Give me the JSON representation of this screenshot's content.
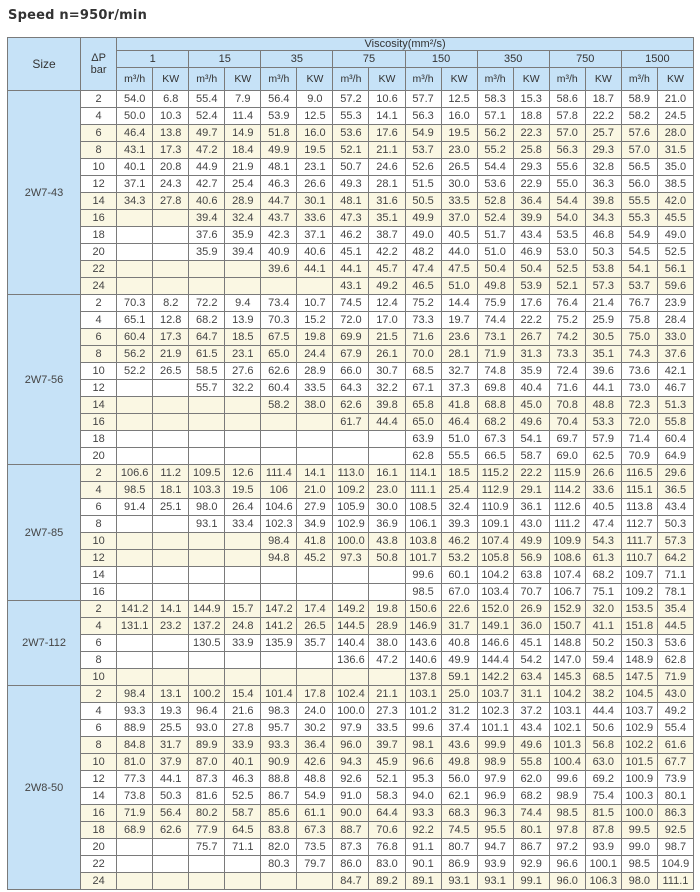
{
  "title": "Speed  n=950r/min",
  "header": {
    "size": "Size",
    "dp": "ΔP",
    "dp_unit": "bar",
    "viscosity": "Viscosity(mm²/s)",
    "viscosities": [
      "1",
      "15",
      "35",
      "75",
      "150",
      "350",
      "750",
      "1500"
    ],
    "flow_unit": "m³/h",
    "power_unit": "KW"
  },
  "colors": {
    "header_bg": "#c6e2f7",
    "alt_row_bg": "#faf7e3",
    "border": "#7a7a7a"
  },
  "groups": [
    {
      "size": "2W7-43",
      "rows": [
        {
          "dp": "2",
          "v": [
            "54.0",
            "6.8",
            "55.4",
            "7.9",
            "56.4",
            "9.0",
            "57.2",
            "10.6",
            "57.7",
            "12.5",
            "58.3",
            "15.3",
            "58.6",
            "18.7",
            "58.9",
            "21.0"
          ]
        },
        {
          "dp": "4",
          "v": [
            "50.0",
            "10.3",
            "52.4",
            "11.4",
            "53.9",
            "12.5",
            "55.3",
            "14.1",
            "56.3",
            "16.0",
            "57.1",
            "18.8",
            "57.8",
            "22.2",
            "58.2",
            "24.5"
          ]
        },
        {
          "dp": "6",
          "v": [
            "46.4",
            "13.8",
            "49.7",
            "14.9",
            "51.8",
            "16.0",
            "53.6",
            "17.6",
            "54.9",
            "19.5",
            "56.2",
            "22.3",
            "57.0",
            "25.7",
            "57.6",
            "28.0"
          ]
        },
        {
          "dp": "8",
          "v": [
            "43.1",
            "17.3",
            "47.2",
            "18.4",
            "49.9",
            "19.5",
            "52.1",
            "21.1",
            "53.7",
            "23.0",
            "55.2",
            "25.8",
            "56.3",
            "29.3",
            "57.0",
            "31.5"
          ]
        },
        {
          "dp": "10",
          "v": [
            "40.1",
            "20.8",
            "44.9",
            "21.9",
            "48.1",
            "23.1",
            "50.7",
            "24.6",
            "52.6",
            "26.5",
            "54.4",
            "29.3",
            "55.6",
            "32.8",
            "56.5",
            "35.0"
          ]
        },
        {
          "dp": "12",
          "v": [
            "37.1",
            "24.3",
            "42.7",
            "25.4",
            "46.3",
            "26.6",
            "49.3",
            "28.1",
            "51.5",
            "30.0",
            "53.6",
            "22.9",
            "55.0",
            "36.3",
            "56.0",
            "38.5"
          ]
        },
        {
          "dp": "14",
          "v": [
            "34.3",
            "27.8",
            "40.6",
            "28.9",
            "44.7",
            "30.1",
            "48.1",
            "31.6",
            "50.5",
            "33.5",
            "52.8",
            "36.4",
            "54.4",
            "39.8",
            "55.5",
            "42.0"
          ]
        },
        {
          "dp": "16",
          "v": [
            "",
            "",
            "39.4",
            "32.4",
            "43.7",
            "33.6",
            "47.3",
            "35.1",
            "49.9",
            "37.0",
            "52.4",
            "39.9",
            "54.0",
            "34.3",
            "55.3",
            "45.5"
          ]
        },
        {
          "dp": "18",
          "v": [
            "",
            "",
            "37.6",
            "35.9",
            "42.3",
            "37.1",
            "46.2",
            "38.7",
            "49.0",
            "40.5",
            "51.7",
            "43.4",
            "53.5",
            "46.8",
            "54.9",
            "49.0"
          ]
        },
        {
          "dp": "20",
          "v": [
            "",
            "",
            "35.9",
            "39.4",
            "40.9",
            "40.6",
            "45.1",
            "42.2",
            "48.2",
            "44.0",
            "51.0",
            "46.9",
            "53.0",
            "50.3",
            "54.5",
            "52.5"
          ]
        },
        {
          "dp": "22",
          "v": [
            "",
            "",
            "",
            "",
            "39.6",
            "44.1",
            "44.1",
            "45.7",
            "47.4",
            "47.5",
            "50.4",
            "50.4",
            "52.5",
            "53.8",
            "54.1",
            "56.1"
          ]
        },
        {
          "dp": "24",
          "v": [
            "",
            "",
            "",
            "",
            "",
            "",
            "43.1",
            "49.2",
            "46.5",
            "51.0",
            "49.8",
            "53.9",
            "52.1",
            "57.3",
            "53.7",
            "59.6"
          ]
        }
      ]
    },
    {
      "size": "2W7-56",
      "rows": [
        {
          "dp": "2",
          "v": [
            "70.3",
            "8.2",
            "72.2",
            "9.4",
            "73.4",
            "10.7",
            "74.5",
            "12.4",
            "75.2",
            "14.4",
            "75.9",
            "17.6",
            "76.4",
            "21.4",
            "76.7",
            "23.9"
          ]
        },
        {
          "dp": "4",
          "v": [
            "65.1",
            "12.8",
            "68.2",
            "13.9",
            "70.3",
            "15.2",
            "72.0",
            "17.0",
            "73.3",
            "19.7",
            "74.4",
            "22.2",
            "75.2",
            "25.9",
            "75.8",
            "28.4"
          ]
        },
        {
          "dp": "6",
          "v": [
            "60.4",
            "17.3",
            "64.7",
            "18.5",
            "67.5",
            "19.8",
            "69.9",
            "21.5",
            "71.6",
            "23.6",
            "73.1",
            "26.7",
            "74.2",
            "30.5",
            "75.0",
            "33.0"
          ]
        },
        {
          "dp": "8",
          "v": [
            "56.2",
            "21.9",
            "61.5",
            "23.1",
            "65.0",
            "24.4",
            "67.9",
            "26.1",
            "70.0",
            "28.1",
            "71.9",
            "31.3",
            "73.3",
            "35.1",
            "74.3",
            "37.6"
          ]
        },
        {
          "dp": "10",
          "v": [
            "52.2",
            "26.5",
            "58.5",
            "27.6",
            "62.6",
            "28.9",
            "66.0",
            "30.7",
            "68.5",
            "32.7",
            "74.8",
            "35.9",
            "72.4",
            "39.6",
            "73.6",
            "42.1"
          ]
        },
        {
          "dp": "12",
          "v": [
            "",
            "",
            "55.7",
            "32.2",
            "60.4",
            "33.5",
            "64.3",
            "32.2",
            "67.1",
            "37.3",
            "69.8",
            "40.4",
            "71.6",
            "44.1",
            "73.0",
            "46.7"
          ]
        },
        {
          "dp": "14",
          "v": [
            "",
            "",
            "",
            "",
            "58.2",
            "38.0",
            "62.6",
            "39.8",
            "65.8",
            "41.8",
            "68.8",
            "45.0",
            "70.8",
            "48.8",
            "72.3",
            "51.3"
          ]
        },
        {
          "dp": "16",
          "v": [
            "",
            "",
            "",
            "",
            "",
            "",
            "61.7",
            "44.4",
            "65.0",
            "46.4",
            "68.2",
            "49.6",
            "70.4",
            "53.3",
            "72.0",
            "55.8"
          ]
        },
        {
          "dp": "18",
          "v": [
            "",
            "",
            "",
            "",
            "",
            "",
            "",
            "",
            "63.9",
            "51.0",
            "67.3",
            "54.1",
            "69.7",
            "57.9",
            "71.4",
            "60.4"
          ]
        },
        {
          "dp": "20",
          "v": [
            "",
            "",
            "",
            "",
            "",
            "",
            "",
            "",
            "62.8",
            "55.5",
            "66.5",
            "58.7",
            "69.0",
            "62.5",
            "70.9",
            "64.9"
          ]
        }
      ]
    },
    {
      "size": "2W7-85",
      "rows": [
        {
          "dp": "2",
          "v": [
            "106.6",
            "11.2",
            "109.5",
            "12.6",
            "111.4",
            "14.1",
            "113.0",
            "16.1",
            "114.1",
            "18.5",
            "115.2",
            "22.2",
            "115.9",
            "26.6",
            "116.5",
            "29.6"
          ]
        },
        {
          "dp": "4",
          "v": [
            "98.5",
            "18.1",
            "103.3",
            "19.5",
            "106",
            "21.0",
            "109.2",
            "23.0",
            "111.1",
            "25.4",
            "112.9",
            "29.1",
            "114.2",
            "33.6",
            "115.1",
            "36.5"
          ]
        },
        {
          "dp": "6",
          "v": [
            "91.4",
            "25.1",
            "98.0",
            "26.4",
            "104.6",
            "27.9",
            "105.9",
            "30.0",
            "108.5",
            "32.4",
            "110.9",
            "36.1",
            "112.6",
            "40.5",
            "113.8",
            "43.4"
          ]
        },
        {
          "dp": "8",
          "v": [
            "",
            "",
            "93.1",
            "33.4",
            "102.3",
            "34.9",
            "102.9",
            "36.9",
            "106.1",
            "39.3",
            "109.1",
            "43.0",
            "111.2",
            "47.4",
            "112.7",
            "50.3"
          ]
        },
        {
          "dp": "10",
          "v": [
            "",
            "",
            "",
            "",
            "98.4",
            "41.8",
            "100.0",
            "43.8",
            "103.8",
            "46.2",
            "107.4",
            "49.9",
            "109.9",
            "54.3",
            "111.7",
            "57.3"
          ]
        },
        {
          "dp": "12",
          "v": [
            "",
            "",
            "",
            "",
            "94.8",
            "45.2",
            "97.3",
            "50.8",
            "101.7",
            "53.2",
            "105.8",
            "56.9",
            "108.6",
            "61.3",
            "110.7",
            "64.2"
          ]
        },
        {
          "dp": "14",
          "v": [
            "",
            "",
            "",
            "",
            "",
            "",
            "",
            "",
            "99.6",
            "60.1",
            "104.2",
            "63.8",
            "107.4",
            "68.2",
            "109.7",
            "71.1"
          ]
        },
        {
          "dp": "16",
          "v": [
            "",
            "",
            "",
            "",
            "",
            "",
            "",
            "",
            "98.5",
            "67.0",
            "103.4",
            "70.7",
            "106.7",
            "75.1",
            "109.2",
            "78.1"
          ]
        }
      ]
    },
    {
      "size": "2W7-112",
      "rows": [
        {
          "dp": "2",
          "v": [
            "141.2",
            "14.1",
            "144.9",
            "15.7",
            "147.2",
            "17.4",
            "149.2",
            "19.8",
            "150.6",
            "22.6",
            "152.0",
            "26.9",
            "152.9",
            "32.0",
            "153.5",
            "35.4"
          ]
        },
        {
          "dp": "4",
          "v": [
            "131.1",
            "23.2",
            "137.2",
            "24.8",
            "141.2",
            "26.5",
            "144.5",
            "28.9",
            "146.9",
            "31.7",
            "149.1",
            "36.0",
            "150.7",
            "41.1",
            "151.8",
            "44.5"
          ]
        },
        {
          "dp": "6",
          "v": [
            "",
            "",
            "130.5",
            "33.9",
            "135.9",
            "35.7",
            "140.4",
            "38.0",
            "143.6",
            "40.8",
            "146.6",
            "45.1",
            "148.8",
            "50.2",
            "150.3",
            "53.6"
          ]
        },
        {
          "dp": "8",
          "v": [
            "",
            "",
            "",
            "",
            "",
            "",
            "136.6",
            "47.2",
            "140.6",
            "49.9",
            "144.4",
            "54.2",
            "147.0",
            "59.4",
            "148.9",
            "62.8"
          ]
        },
        {
          "dp": "10",
          "v": [
            "",
            "",
            "",
            "",
            "",
            "",
            "",
            "",
            "137.8",
            "59.1",
            "142.2",
            "63.4",
            "145.3",
            "68.5",
            "147.5",
            "71.9"
          ]
        }
      ]
    },
    {
      "size": "2W8-50",
      "rows": [
        {
          "dp": "2",
          "v": [
            "98.4",
            "13.1",
            "100.2",
            "15.4",
            "101.4",
            "17.8",
            "102.4",
            "21.1",
            "103.1",
            "25.0",
            "103.7",
            "31.1",
            "104.2",
            "38.2",
            "104.5",
            "43.0"
          ]
        },
        {
          "dp": "4",
          "v": [
            "93.3",
            "19.3",
            "96.4",
            "21.6",
            "98.3",
            "24.0",
            "100.0",
            "27.3",
            "101.2",
            "31.2",
            "102.3",
            "37.2",
            "103.1",
            "44.4",
            "103.7",
            "49.2"
          ]
        },
        {
          "dp": "6",
          "v": [
            "88.9",
            "25.5",
            "93.0",
            "27.8",
            "95.7",
            "30.2",
            "97.9",
            "33.5",
            "99.6",
            "37.4",
            "101.1",
            "43.4",
            "102.1",
            "50.6",
            "102.9",
            "55.4"
          ]
        },
        {
          "dp": "8",
          "v": [
            "84.8",
            "31.7",
            "89.9",
            "33.9",
            "93.3",
            "36.4",
            "96.0",
            "39.7",
            "98.1",
            "43.6",
            "99.9",
            "49.6",
            "101.3",
            "56.8",
            "102.2",
            "61.6"
          ]
        },
        {
          "dp": "10",
          "v": [
            "81.0",
            "37.9",
            "87.0",
            "40.1",
            "90.9",
            "42.6",
            "94.3",
            "45.9",
            "96.6",
            "49.8",
            "98.9",
            "55.8",
            "100.4",
            "63.0",
            "101.5",
            "67.7"
          ]
        },
        {
          "dp": "12",
          "v": [
            "77.3",
            "44.1",
            "87.3",
            "46.3",
            "88.8",
            "48.8",
            "92.6",
            "52.1",
            "95.3",
            "56.0",
            "97.9",
            "62.0",
            "99.6",
            "69.2",
            "100.9",
            "73.9"
          ]
        },
        {
          "dp": "14",
          "v": [
            "73.8",
            "50.3",
            "81.6",
            "52.5",
            "86.7",
            "54.9",
            "91.0",
            "58.3",
            "94.0",
            "62.1",
            "96.9",
            "68.2",
            "98.9",
            "75.4",
            "100.3",
            "80.1"
          ]
        },
        {
          "dp": "16",
          "v": [
            "71.9",
            "56.4",
            "80.2",
            "58.7",
            "85.6",
            "61.1",
            "90.0",
            "64.4",
            "93.3",
            "68.3",
            "96.3",
            "74.4",
            "98.5",
            "81.5",
            "100.0",
            "86.3"
          ]
        },
        {
          "dp": "18",
          "v": [
            "68.9",
            "62.6",
            "77.9",
            "64.5",
            "83.8",
            "67.3",
            "88.7",
            "70.6",
            "92.2",
            "74.5",
            "95.5",
            "80.1",
            "97.8",
            "87.8",
            "99.5",
            "92.5"
          ]
        },
        {
          "dp": "20",
          "v": [
            "",
            "",
            "75.7",
            "71.1",
            "82.0",
            "73.5",
            "87.3",
            "76.8",
            "91.1",
            "80.7",
            "94.7",
            "86.7",
            "97.2",
            "93.9",
            "99.0",
            "98.7"
          ]
        },
        {
          "dp": "22",
          "v": [
            "",
            "",
            "",
            "",
            "80.3",
            "79.7",
            "86.0",
            "83.0",
            "90.1",
            "86.9",
            "93.9",
            "92.9",
            "96.6",
            "100.1",
            "98.5",
            "104.9"
          ]
        },
        {
          "dp": "24",
          "v": [
            "",
            "",
            "",
            "",
            "",
            "",
            "84.7",
            "89.2",
            "89.1",
            "93.1",
            "93.1",
            "99.1",
            "96.0",
            "106.3",
            "98.0",
            "111.1"
          ]
        }
      ]
    }
  ]
}
